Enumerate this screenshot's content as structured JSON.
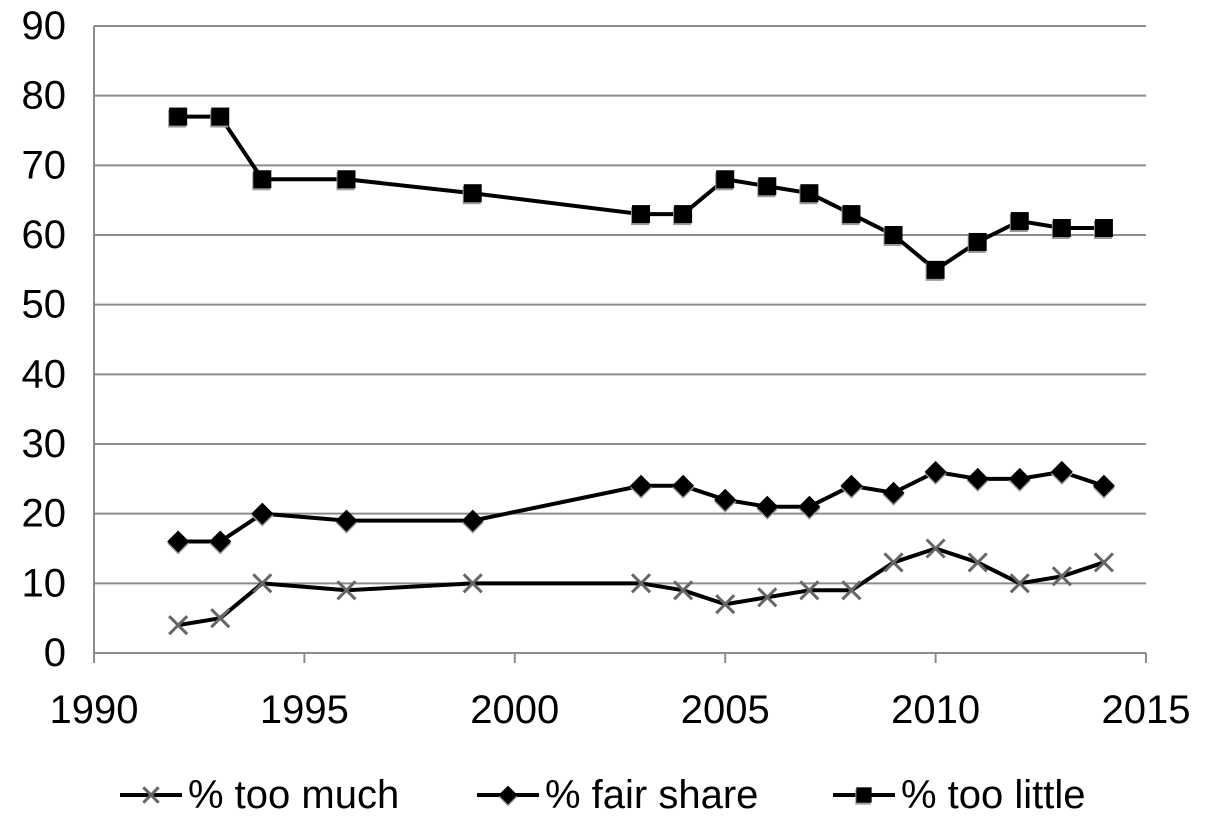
{
  "chart_data": {
    "type": "line",
    "title": "",
    "xlabel": "",
    "ylabel": "",
    "xlim": [
      1990,
      2015
    ],
    "ylim": [
      0,
      90
    ],
    "x_ticks": [
      1990,
      1995,
      2000,
      2005,
      2010,
      2015
    ],
    "y_ticks": [
      0,
      10,
      20,
      30,
      40,
      50,
      60,
      70,
      80,
      90
    ],
    "grid": "horizontal",
    "legend_position": "bottom",
    "series": [
      {
        "name": "% too much",
        "marker": "x",
        "color": "#000000",
        "x": [
          1992,
          1993,
          1994,
          1996,
          1999,
          2003,
          2004,
          2005,
          2006,
          2007,
          2008,
          2009,
          2010,
          2011,
          2012,
          2013,
          2014
        ],
        "values": [
          4,
          5,
          10,
          9,
          10,
          10,
          9,
          7,
          8,
          9,
          9,
          13,
          15,
          13,
          10,
          11,
          13
        ]
      },
      {
        "name": "% fair share",
        "marker": "diamond",
        "color": "#000000",
        "x": [
          1992,
          1993,
          1994,
          1996,
          1999,
          2003,
          2004,
          2005,
          2006,
          2007,
          2008,
          2009,
          2010,
          2011,
          2012,
          2013,
          2014
        ],
        "values": [
          16,
          16,
          20,
          19,
          19,
          24,
          24,
          22,
          21,
          21,
          24,
          23,
          26,
          25,
          25,
          26,
          24
        ]
      },
      {
        "name": "% too little",
        "marker": "square",
        "color": "#000000",
        "x": [
          1992,
          1993,
          1994,
          1996,
          1999,
          2003,
          2004,
          2005,
          2006,
          2007,
          2008,
          2009,
          2010,
          2011,
          2012,
          2013,
          2014
        ],
        "values": [
          77,
          77,
          68,
          68,
          66,
          63,
          63,
          68,
          67,
          66,
          63,
          60,
          55,
          59,
          62,
          61,
          61
        ]
      }
    ]
  }
}
